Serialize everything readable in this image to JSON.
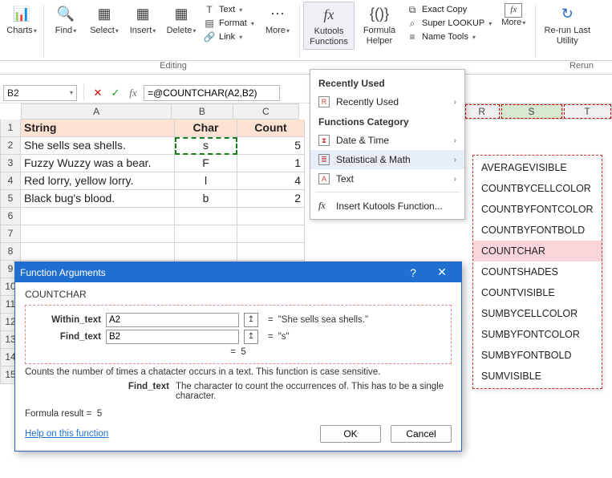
{
  "ribbon": {
    "charts": "Charts",
    "find": "Find",
    "select": "Select",
    "insert": "Insert",
    "delete": "Delete",
    "text": "Text",
    "format": "Format",
    "link": "Link",
    "more1": "More",
    "kutools": "Kutools\nFunctions",
    "formula_helper": "Formula\nHelper",
    "exact_copy": "Exact Copy",
    "super_lookup": "Super LOOKUP",
    "name_tools": "Name Tools",
    "more2": "More",
    "rerun": "Re-run Last\nUtility",
    "group_editing": "Editing",
    "group_rerun": "Rerun"
  },
  "namebox": {
    "cell": "B2"
  },
  "formula_bar": {
    "text": "=@COUNTCHAR(A2,B2)"
  },
  "columns": {
    "a": "A",
    "b": "B",
    "c": "C",
    "r": "R",
    "s": "S",
    "t": "T"
  },
  "col_widths": {
    "a": 192,
    "b": 78,
    "c": 84,
    "gap": 210,
    "r": 46,
    "s": 80,
    "t": 62
  },
  "hdr": {
    "string": "String",
    "char": "Char",
    "count": "Count"
  },
  "rows": [
    {
      "s": "She sells sea shells.",
      "c": "s",
      "n": "5"
    },
    {
      "s": "Fuzzy Wuzzy was a bear.",
      "c": "F",
      "n": "1"
    },
    {
      "s": "Red lorry, yellow lorry.",
      "c": "l",
      "n": "4"
    },
    {
      "s": "Black bug's blood.",
      "c": "b",
      "n": "2"
    }
  ],
  "menu": {
    "recently_used_sec": "Recently Used",
    "recently_used": "Recently Used",
    "category_sec": "Functions Category",
    "date_time": "Date & Time",
    "stat_math": "Statistical & Math",
    "text": "Text",
    "insert_fn": "Insert Kutools Function..."
  },
  "submenu": {
    "items": [
      "AVERAGEVISIBLE",
      "COUNTBYCELLCOLOR",
      "COUNTBYFONTCOLOR",
      "COUNTBYFONTBOLD",
      "COUNTCHAR",
      "COUNTSHADES",
      "COUNTVISIBLE",
      "SUMBYCELLCOLOR",
      "SUMBYFONTCOLOR",
      "SUMBYFONTBOLD",
      "SUMVISIBLE"
    ],
    "selected_index": 4
  },
  "dialog": {
    "title": "Function Arguments",
    "func": "COUNTCHAR",
    "arg1_label": "Within_text",
    "arg1_value": "A2",
    "arg1_result": "\"She sells sea shells.\"",
    "arg2_label": "Find_text",
    "arg2_value": "B2",
    "arg2_result": "\"s\"",
    "calc_result": "5",
    "description": "Counts the number of times a chatacter occurs in a text. This function is case sensitive.",
    "param_name": "Find_text",
    "param_desc": "The character to count the occurrences of. This has to be a single character.",
    "formula_result_label": "Formula result =",
    "formula_result": "5",
    "help": "Help on this function",
    "ok": "OK",
    "cancel": "Cancel"
  }
}
